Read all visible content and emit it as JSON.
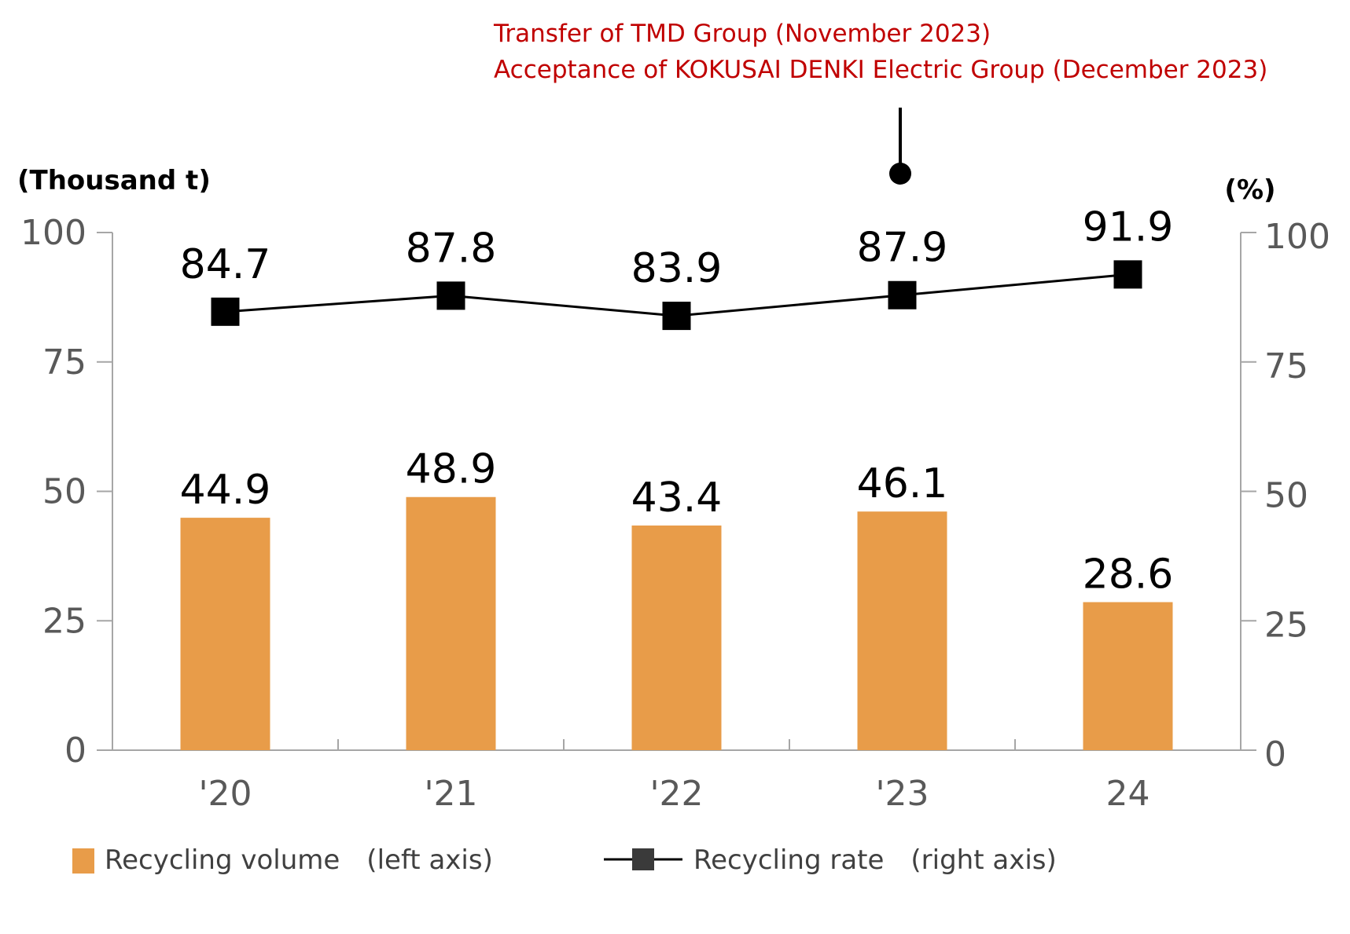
{
  "chart_data": {
    "type": "bar",
    "categories": [
      "'20",
      "'21",
      "'22",
      "'23",
      "24"
    ],
    "series": [
      {
        "name": "Recycling volume　(left axis)",
        "type": "bar",
        "axis": "left",
        "values": [
          44.9,
          48.9,
          43.4,
          46.1,
          28.6
        ],
        "color": "#e89c49"
      },
      {
        "name": "Recycling rate　(right axis)",
        "type": "line",
        "axis": "right",
        "values": [
          84.7,
          87.8,
          83.9,
          87.9,
          91.9
        ],
        "color": "#000000"
      }
    ],
    "y_left": {
      "label": "(Thousand t)",
      "ticks": [
        "0",
        "25",
        "50",
        "75",
        "100"
      ],
      "range": [
        0,
        100
      ]
    },
    "y_right": {
      "label": "(%)",
      "ticks": [
        "0",
        "25",
        "50",
        "75",
        "100"
      ],
      "range": [
        0,
        100
      ]
    },
    "data_labels": {
      "bars": [
        "44.9",
        "48.9",
        "43.4",
        "46.1",
        "28.6"
      ],
      "line": [
        "84.7",
        "87.8",
        "83.9",
        "87.9",
        "91.9"
      ]
    },
    "annotation": {
      "lines": [
        "Transfer of TMD Group (November 2023)",
        "Acceptance of KOKUSAI DENKI Electric Group (December 2023)"
      ],
      "color": "#c00000",
      "category": "'23"
    },
    "legend_placement": "bottom",
    "grid": false
  }
}
